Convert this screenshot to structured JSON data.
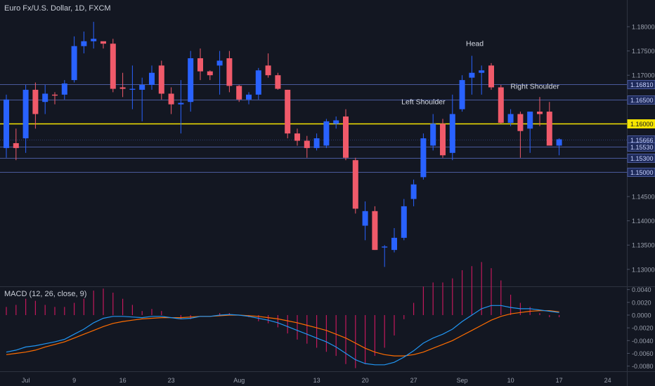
{
  "chart_data": {
    "type": "candlestick",
    "title": "Euro Fx/U.S. Dollar, 1D, FXCM",
    "price_axis": {
      "ylim": [
        1.1265,
        1.1855
      ],
      "ticks": [
        "1.18000",
        "1.17500",
        "1.17000",
        "1.16500",
        "1.16000",
        "1.15500",
        "1.15000",
        "1.14500",
        "1.14000",
        "1.13500",
        "1.13000"
      ]
    },
    "x_ticks": [
      {
        "label": "Jul",
        "idx": 2
      },
      {
        "label": "9",
        "idx": 7
      },
      {
        "label": "16",
        "idx": 12
      },
      {
        "label": "23",
        "idx": 17
      },
      {
        "label": "Aug",
        "idx": 24
      },
      {
        "label": "13",
        "idx": 32
      },
      {
        "label": "20",
        "idx": 37
      },
      {
        "label": "27",
        "idx": 42
      },
      {
        "label": "Sep",
        "idx": 47
      },
      {
        "label": "10",
        "idx": 52
      },
      {
        "label": "17",
        "idx": 57
      },
      {
        "label": "24",
        "idx": 62
      }
    ],
    "candles": [
      {
        "o": 1.155,
        "h": 1.166,
        "l": 1.153,
        "c": 1.165
      },
      {
        "o": 1.156,
        "h": 1.159,
        "l": 1.1525,
        "c": 1.155
      },
      {
        "o": 1.157,
        "h": 1.168,
        "l": 1.154,
        "c": 1.167
      },
      {
        "o": 1.167,
        "h": 1.1685,
        "l": 1.159,
        "c": 1.162
      },
      {
        "o": 1.1645,
        "h": 1.168,
        "l": 1.162,
        "c": 1.1662
      },
      {
        "o": 1.166,
        "h": 1.1665,
        "l": 1.164,
        "c": 1.1658
      },
      {
        "o": 1.166,
        "h": 1.169,
        "l": 1.165,
        "c": 1.1683
      },
      {
        "o": 1.169,
        "h": 1.178,
        "l": 1.1685,
        "c": 1.176
      },
      {
        "o": 1.176,
        "h": 1.179,
        "l": 1.1745,
        "c": 1.177
      },
      {
        "o": 1.177,
        "h": 1.181,
        "l": 1.1755,
        "c": 1.1775
      },
      {
        "o": 1.177,
        "h": 1.1765,
        "l": 1.1755,
        "c": 1.1765
      },
      {
        "o": 1.1765,
        "h": 1.1775,
        "l": 1.1665,
        "c": 1.1672
      },
      {
        "o": 1.1675,
        "h": 1.1705,
        "l": 1.1655,
        "c": 1.1672
      },
      {
        "o": 1.167,
        "h": 1.172,
        "l": 1.163,
        "c": 1.1672
      },
      {
        "o": 1.167,
        "h": 1.1695,
        "l": 1.1605,
        "c": 1.168
      },
      {
        "o": 1.168,
        "h": 1.172,
        "l": 1.167,
        "c": 1.1705
      },
      {
        "o": 1.172,
        "h": 1.173,
        "l": 1.165,
        "c": 1.1662
      },
      {
        "o": 1.1662,
        "h": 1.1675,
        "l": 1.162,
        "c": 1.164
      },
      {
        "o": 1.164,
        "h": 1.169,
        "l": 1.158,
        "c": 1.1643
      },
      {
        "o": 1.1645,
        "h": 1.175,
        "l": 1.1625,
        "c": 1.1735
      },
      {
        "o": 1.1735,
        "h": 1.1755,
        "l": 1.169,
        "c": 1.1708
      },
      {
        "o": 1.1708,
        "h": 1.171,
        "l": 1.169,
        "c": 1.17
      },
      {
        "o": 1.172,
        "h": 1.175,
        "l": 1.166,
        "c": 1.173
      },
      {
        "o": 1.1735,
        "h": 1.175,
        "l": 1.1665,
        "c": 1.1678
      },
      {
        "o": 1.1678,
        "h": 1.168,
        "l": 1.1645,
        "c": 1.165
      },
      {
        "o": 1.165,
        "h": 1.1665,
        "l": 1.164,
        "c": 1.166
      },
      {
        "o": 1.166,
        "h": 1.1715,
        "l": 1.165,
        "c": 1.171
      },
      {
        "o": 1.172,
        "h": 1.1745,
        "l": 1.1695,
        "c": 1.17
      },
      {
        "o": 1.17,
        "h": 1.1705,
        "l": 1.167,
        "c": 1.1672
      },
      {
        "o": 1.167,
        "h": 1.167,
        "l": 1.157,
        "c": 1.158
      },
      {
        "o": 1.158,
        "h": 1.159,
        "l": 1.1555,
        "c": 1.1565
      },
      {
        "o": 1.1565,
        "h": 1.1575,
        "l": 1.153,
        "c": 1.155
      },
      {
        "o": 1.155,
        "h": 1.158,
        "l": 1.1545,
        "c": 1.157
      },
      {
        "o": 1.1555,
        "h": 1.161,
        "l": 1.155,
        "c": 1.1605
      },
      {
        "o": 1.16,
        "h": 1.1615,
        "l": 1.159,
        "c": 1.1607
      },
      {
        "o": 1.1615,
        "h": 1.163,
        "l": 1.1525,
        "c": 1.153
      },
      {
        "o": 1.1525,
        "h": 1.153,
        "l": 1.1415,
        "c": 1.1425
      },
      {
        "o": 1.139,
        "h": 1.144,
        "l": 1.136,
        "c": 1.142
      },
      {
        "o": 1.142,
        "h": 1.143,
        "l": 1.134,
        "c": 1.134
      },
      {
        "o": 1.1345,
        "h": 1.135,
        "l": 1.1305,
        "c": 1.1347
      },
      {
        "o": 1.134,
        "h": 1.1385,
        "l": 1.1335,
        "c": 1.1365
      },
      {
        "o": 1.1365,
        "h": 1.1445,
        "l": 1.136,
        "c": 1.143
      },
      {
        "o": 1.1445,
        "h": 1.1485,
        "l": 1.143,
        "c": 1.1475
      },
      {
        "o": 1.149,
        "h": 1.158,
        "l": 1.1485,
        "c": 1.157
      },
      {
        "o": 1.1555,
        "h": 1.162,
        "l": 1.1545,
        "c": 1.16
      },
      {
        "o": 1.16,
        "h": 1.161,
        "l": 1.153,
        "c": 1.1535
      },
      {
        "o": 1.154,
        "h": 1.166,
        "l": 1.1525,
        "c": 1.162
      },
      {
        "o": 1.163,
        "h": 1.17,
        "l": 1.1625,
        "c": 1.169
      },
      {
        "o": 1.1695,
        "h": 1.174,
        "l": 1.166,
        "c": 1.1705
      },
      {
        "o": 1.1705,
        "h": 1.172,
        "l": 1.166,
        "c": 1.171
      },
      {
        "o": 1.172,
        "h": 1.1725,
        "l": 1.167,
        "c": 1.1675
      },
      {
        "o": 1.1675,
        "h": 1.168,
        "l": 1.16,
        "c": 1.1602
      },
      {
        "o": 1.1602,
        "h": 1.163,
        "l": 1.1595,
        "c": 1.162
      },
      {
        "o": 1.162,
        "h": 1.1625,
        "l": 1.153,
        "c": 1.1585
      },
      {
        "o": 1.159,
        "h": 1.1625,
        "l": 1.154,
        "c": 1.1625
      },
      {
        "o": 1.1625,
        "h": 1.1655,
        "l": 1.1595,
        "c": 1.162
      },
      {
        "o": 1.1625,
        "h": 1.1645,
        "l": 1.1555,
        "c": 1.1555
      },
      {
        "o": 1.1555,
        "h": 1.157,
        "l": 1.1535,
        "c": 1.1568
      }
    ],
    "horizontal_lines": [
      {
        "price": 1.1681,
        "label": "1.16810",
        "color": "#4a5a9c"
      },
      {
        "price": 1.165,
        "label": "1.16500",
        "color": "#4a5a9c"
      },
      {
        "price": 1.16,
        "label": "1.16000",
        "color": "#f5e400"
      },
      {
        "price": 1.15666,
        "label": "1.15666",
        "color": "#2f3b6e",
        "dotted": true
      },
      {
        "price": 1.1553,
        "label": "1.15530",
        "color": "#4a5a9c"
      },
      {
        "price": 1.153,
        "label": "1.15300",
        "color": "#4a5a9c"
      },
      {
        "price": 1.15,
        "label": "1.15000",
        "color": "#4a5a9c"
      }
    ],
    "annotations": [
      {
        "text": "Head",
        "idx": 48.3,
        "price": 1.176
      },
      {
        "text": "Left Shoulder",
        "idx": 43,
        "price": 1.164
      },
      {
        "text": "Right Shoulder",
        "idx": 54.5,
        "price": 1.1672
      }
    ],
    "macd": {
      "title": "MACD (12, 26, close, 9)",
      "ylim": [
        -0.0087,
        0.0044
      ],
      "ticks": [
        "0.0040",
        "0.0020",
        "0.0000",
        "-0.0020",
        "-0.0040",
        "-0.0060",
        "-0.0080"
      ],
      "macd_line": [
        -0.0058,
        -0.0055,
        -0.005,
        -0.0048,
        -0.0045,
        -0.0042,
        -0.0038,
        -0.003,
        -0.0022,
        -0.0012,
        -0.0005,
        -0.0002,
        -0.0002,
        -0.0003,
        -0.0004,
        -0.0002,
        -0.0002,
        -0.0004,
        -0.0006,
        -0.0005,
        -0.0002,
        -0.0002,
        0.0,
        0.0001,
        0.0,
        -0.0002,
        -0.0005,
        -0.0008,
        -0.0012,
        -0.0018,
        -0.0024,
        -0.003,
        -0.0036,
        -0.0042,
        -0.005,
        -0.006,
        -0.007,
        -0.0076,
        -0.0078,
        -0.0078,
        -0.0074,
        -0.0066,
        -0.0056,
        -0.0044,
        -0.0036,
        -0.003,
        -0.0022,
        -0.001,
        0.0,
        0.001,
        0.0015,
        0.0015,
        0.0012,
        0.001,
        0.001,
        0.0008,
        0.0006,
        0.0004
      ],
      "signal_line": [
        -0.0062,
        -0.006,
        -0.0058,
        -0.0055,
        -0.005,
        -0.0046,
        -0.0042,
        -0.0036,
        -0.003,
        -0.0024,
        -0.0018,
        -0.0013,
        -0.001,
        -0.0008,
        -0.0006,
        -0.0005,
        -0.0004,
        -0.0004,
        -0.0004,
        -0.0003,
        -0.0002,
        -0.0002,
        -0.0001,
        0.0,
        0.0,
        -0.0001,
        -0.0002,
        -0.0004,
        -0.0006,
        -0.0009,
        -0.0012,
        -0.0016,
        -0.002,
        -0.0024,
        -0.003,
        -0.0036,
        -0.0044,
        -0.0052,
        -0.0058,
        -0.0062,
        -0.0064,
        -0.0064,
        -0.0062,
        -0.0058,
        -0.0052,
        -0.0046,
        -0.004,
        -0.0032,
        -0.0024,
        -0.0016,
        -0.0008,
        -0.0002,
        0.0002,
        0.0004,
        0.0006,
        0.0007,
        0.0007,
        0.0005
      ],
      "hist_color_pos": "#c2185b",
      "hist_color_neg": "#c2185b"
    },
    "colors": {
      "background": "#131722",
      "up": "#2962ff",
      "down": "#f05a6a",
      "macd_line": "#2196f3",
      "signal_line": "#ff6d00",
      "grid": "#2a2e39",
      "axis_text": "#9aa0ad"
    }
  }
}
